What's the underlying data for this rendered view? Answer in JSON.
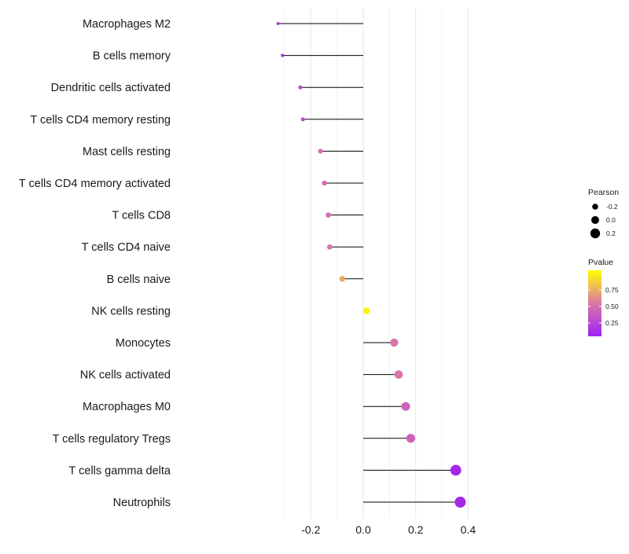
{
  "chart_data": {
    "type": "lollipop",
    "categories": [
      "Macrophages M2",
      "B cells memory",
      "Dendritic cells activated",
      "T cells CD4 memory resting",
      "Mast cells resting",
      "T cells CD4 memory activated",
      "T cells CD8",
      "T cells CD4 naive",
      "B cells naive",
      "NK cells resting",
      "Monocytes",
      "NK cells activated",
      "Macrophages M0",
      "T cells regulatory  Tregs ",
      "T cells gamma delta",
      "Neutrophils"
    ],
    "values": [
      -0.325,
      -0.308,
      -0.24,
      -0.23,
      -0.163,
      -0.148,
      -0.133,
      -0.128,
      -0.08,
      0.013,
      0.118,
      0.135,
      0.162,
      0.181,
      0.353,
      0.37
    ],
    "pvalues": [
      0.08,
      0.07,
      0.25,
      0.25,
      0.45,
      0.45,
      0.45,
      0.47,
      0.68,
      0.97,
      0.48,
      0.48,
      0.38,
      0.38,
      0.05,
      0.05
    ],
    "xlim": [
      -0.3,
      0.4
    ],
    "xticks": [
      -0.2,
      0.0,
      0.2,
      0.4
    ],
    "xtick_labels": [
      "-0.2",
      "0.0",
      "0.2",
      "0.4"
    ],
    "xlabel": "",
    "ylabel": "",
    "grid": true,
    "legend": {
      "size_title": "Pearson",
      "size_breaks": [
        -0.2,
        0.0,
        0.2
      ],
      "size_labels": [
        "-0.2",
        "0.0",
        "0.2"
      ],
      "color_title": "Pvalue",
      "color_breaks": [
        0.25,
        0.5,
        0.75
      ],
      "color_labels": [
        "0.25",
        "0.50",
        "0.75"
      ],
      "color_low": "#a020f0",
      "color_high": "#ffff00",
      "position": "right"
    }
  }
}
